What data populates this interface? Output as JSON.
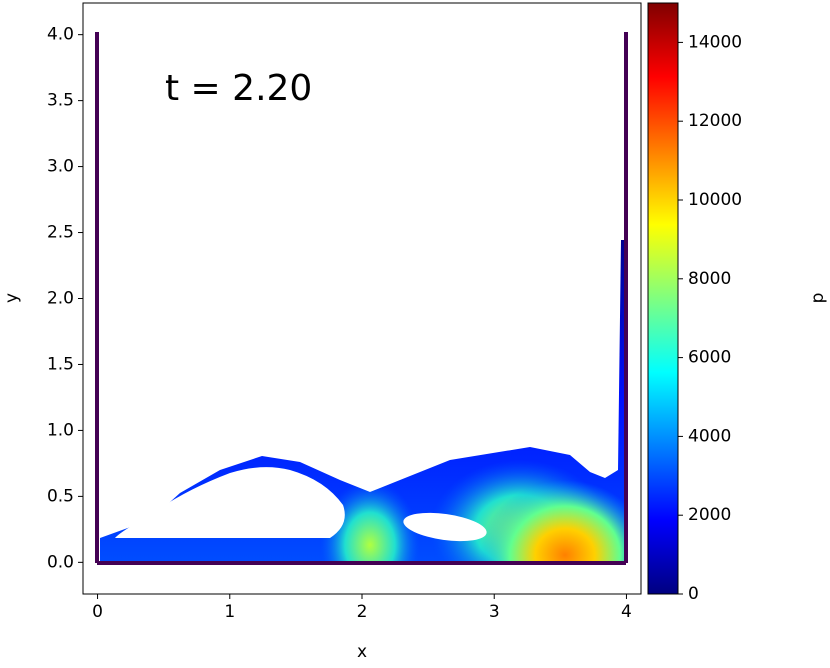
{
  "chart_data": {
    "type": "field",
    "annotation": "t = 2.20",
    "x_label": "x",
    "y_label": "y",
    "xlim": [
      -0.11,
      4.11
    ],
    "ylim": [
      -0.24,
      4.24
    ],
    "xticks": [
      0,
      1,
      2,
      3,
      4
    ],
    "yticks": [
      {
        "value": 0,
        "label": "0.0"
      },
      0.5,
      {
        "value": 1,
        "label": "1.0"
      },
      1.5,
      {
        "value": 2,
        "label": "2.0"
      },
      2.5,
      {
        "value": 3,
        "label": "3.0"
      },
      3.5,
      {
        "value": 4,
        "label": "4.0"
      }
    ],
    "colorbar": {
      "label": "p",
      "lim": [
        0,
        15000
      ],
      "ticks": [
        0,
        2000,
        4000,
        6000,
        8000,
        10000,
        12000,
        14000
      ]
    }
  }
}
